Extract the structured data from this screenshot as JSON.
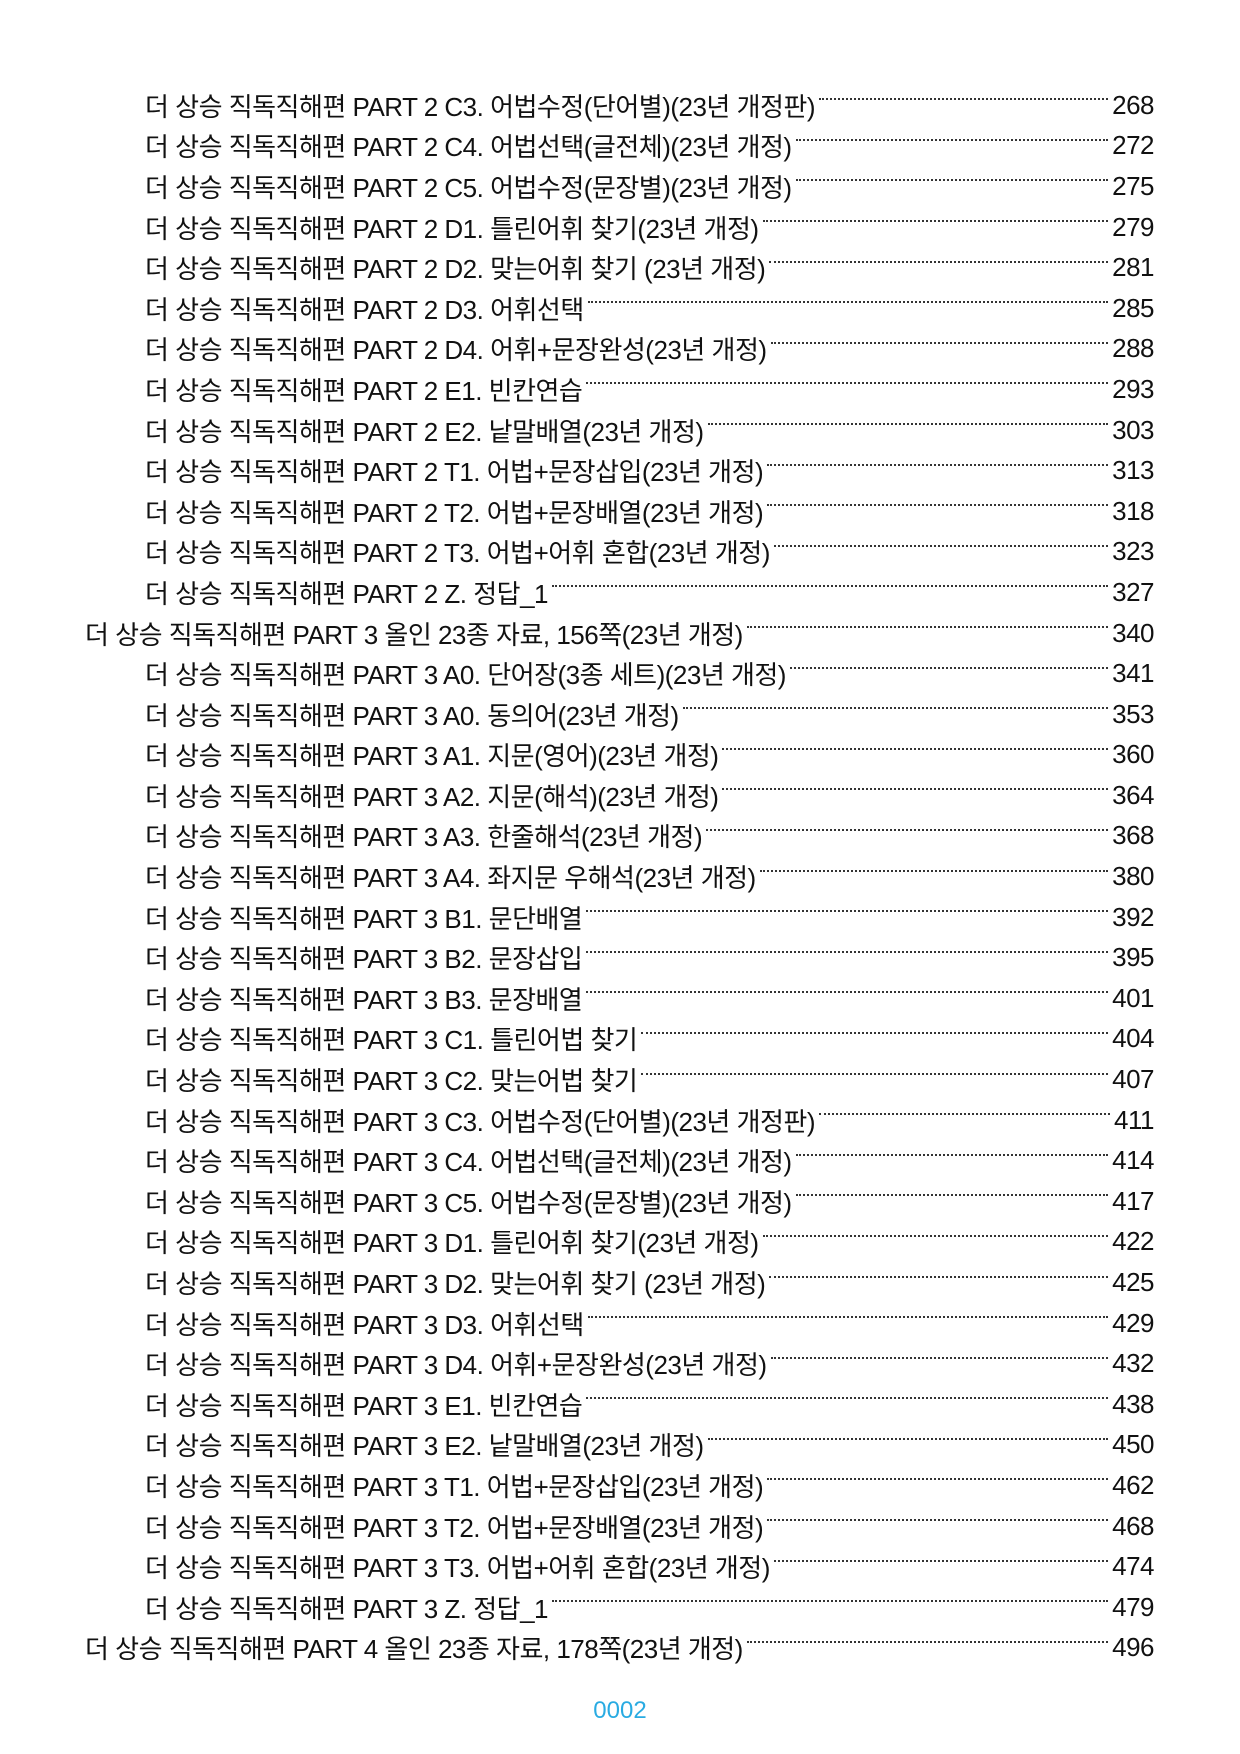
{
  "entries": [
    {
      "level": 2,
      "title": "더 상승 직독직해편 PART 2 C3. 어법수정(단어별)(23년 개정판)",
      "page": "268"
    },
    {
      "level": 2,
      "title": "더 상승 직독직해편 PART 2 C4. 어법선택(글전체)(23년 개정)",
      "page": "272"
    },
    {
      "level": 2,
      "title": "더 상승 직독직해편 PART 2 C5. 어법수정(문장별)(23년 개정)",
      "page": "275"
    },
    {
      "level": 2,
      "title": "더 상승 직독직해편 PART 2 D1. 틀린어휘 찾기(23년 개정)",
      "page": "279"
    },
    {
      "level": 2,
      "title": "더 상승 직독직해편 PART 2 D2. 맞는어휘 찾기 (23년 개정)",
      "page": "281"
    },
    {
      "level": 2,
      "title": "더 상승 직독직해편 PART 2 D3. 어휘선택",
      "page": "285"
    },
    {
      "level": 2,
      "title": "더 상승 직독직해편 PART 2 D4. 어휘+문장완성(23년 개정)",
      "page": "288"
    },
    {
      "level": 2,
      "title": "더 상승 직독직해편 PART 2 E1. 빈칸연습",
      "page": "293"
    },
    {
      "level": 2,
      "title": "더 상승 직독직해편 PART 2 E2. 낱말배열(23년 개정)",
      "page": "303"
    },
    {
      "level": 2,
      "title": "더 상승 직독직해편 PART 2 T1. 어법+문장삽입(23년 개정)",
      "page": "313"
    },
    {
      "level": 2,
      "title": "더 상승 직독직해편 PART 2 T2. 어법+문장배열(23년 개정)",
      "page": "318"
    },
    {
      "level": 2,
      "title": "더 상승 직독직해편 PART 2 T3. 어법+어휘 혼합(23년 개정)",
      "page": "323"
    },
    {
      "level": 2,
      "title": "더 상승 직독직해편 PART 2 Z. 정답_1",
      "page": "327"
    },
    {
      "level": 1,
      "title": "더 상승 직독직해편 PART 3 올인 23종 자료, 156쪽(23년 개정)",
      "page": "340"
    },
    {
      "level": 2,
      "title": "더 상승 직독직해편 PART 3 A0. 단어장(3종 세트)(23년 개정)",
      "page": "341"
    },
    {
      "level": 2,
      "title": "더 상승 직독직해편 PART 3 A0. 동의어(23년 개정)",
      "page": "353"
    },
    {
      "level": 2,
      "title": "더 상승 직독직해편 PART 3 A1. 지문(영어)(23년 개정)",
      "page": "360"
    },
    {
      "level": 2,
      "title": "더 상승 직독직해편 PART 3 A2. 지문(해석)(23년 개정)",
      "page": "364"
    },
    {
      "level": 2,
      "title": "더 상승 직독직해편 PART 3 A3. 한줄해석(23년 개정)",
      "page": "368"
    },
    {
      "level": 2,
      "title": "더 상승 직독직해편 PART 3 A4. 좌지문 우해석(23년 개정)",
      "page": "380"
    },
    {
      "level": 2,
      "title": "더 상승 직독직해편 PART 3 B1. 문단배열",
      "page": "392"
    },
    {
      "level": 2,
      "title": "더 상승 직독직해편 PART 3 B2. 문장삽입",
      "page": "395"
    },
    {
      "level": 2,
      "title": "더 상승 직독직해편 PART 3 B3. 문장배열",
      "page": "401"
    },
    {
      "level": 2,
      "title": "더 상승 직독직해편 PART 3 C1. 틀린어법 찾기",
      "page": "404"
    },
    {
      "level": 2,
      "title": "더 상승 직독직해편 PART 3 C2. 맞는어법 찾기",
      "page": "407"
    },
    {
      "level": 2,
      "title": "더 상승 직독직해편 PART 3 C3. 어법수정(단어별)(23년 개정판)",
      "page": "411"
    },
    {
      "level": 2,
      "title": "더 상승 직독직해편 PART 3 C4. 어법선택(글전체)(23년 개정)",
      "page": "414"
    },
    {
      "level": 2,
      "title": "더 상승 직독직해편 PART 3 C5. 어법수정(문장별)(23년 개정)",
      "page": "417"
    },
    {
      "level": 2,
      "title": "더 상승 직독직해편 PART 3 D1. 틀린어휘 찾기(23년 개정)",
      "page": "422"
    },
    {
      "level": 2,
      "title": "더 상승 직독직해편 PART 3 D2. 맞는어휘 찾기 (23년 개정)",
      "page": "425"
    },
    {
      "level": 2,
      "title": "더 상승 직독직해편 PART 3 D3. 어휘선택",
      "page": "429"
    },
    {
      "level": 2,
      "title": "더 상승 직독직해편 PART 3 D4. 어휘+문장완성(23년 개정)",
      "page": "432"
    },
    {
      "level": 2,
      "title": "더 상승 직독직해편 PART 3 E1. 빈칸연습",
      "page": "438"
    },
    {
      "level": 2,
      "title": "더 상승 직독직해편 PART 3 E2. 낱말배열(23년 개정)",
      "page": "450"
    },
    {
      "level": 2,
      "title": "더 상승 직독직해편 PART 3 T1. 어법+문장삽입(23년 개정)",
      "page": "462"
    },
    {
      "level": 2,
      "title": "더 상승 직독직해편 PART 3 T2. 어법+문장배열(23년 개정)",
      "page": "468"
    },
    {
      "level": 2,
      "title": "더 상승 직독직해편 PART 3 T3. 어법+어휘 혼합(23년 개정)",
      "page": "474"
    },
    {
      "level": 2,
      "title": "더 상승 직독직해편 PART 3 Z. 정답_1",
      "page": "479"
    },
    {
      "level": 1,
      "title": "더 상승 직독직해편 PART 4 올인 23종 자료, 178쪽(23년 개정)",
      "page": "496"
    }
  ],
  "footer": {
    "page_number": "0002",
    "page_number_color": "#29abe2"
  }
}
